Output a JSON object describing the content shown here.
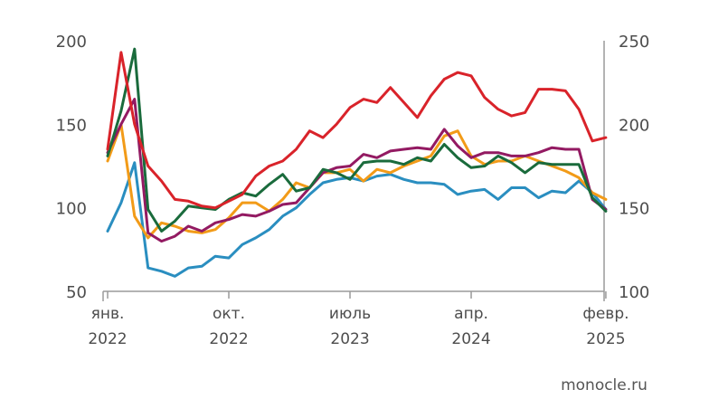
{
  "chart_data": {
    "type": "line",
    "title": "",
    "xlabel": "",
    "ylabel": "",
    "ylim_left": [
      50,
      200
    ],
    "ylim_right": [
      100,
      250
    ],
    "left_ticks": [
      "200",
      "150",
      "100",
      "50"
    ],
    "right_ticks": [
      "250",
      "200",
      "150",
      "100"
    ],
    "x_ticks": [
      {
        "month": "янв.",
        "year": "2022"
      },
      {
        "month": "окт.",
        "year": "2022"
      },
      {
        "month": "июль",
        "year": "2023"
      },
      {
        "month": "апр.",
        "year": "2024"
      },
      {
        "month": "февр.",
        "year": "2025"
      }
    ],
    "grid": false,
    "series": [
      {
        "color": "#d9232a",
        "axis": "left",
        "values": [
          135,
          193,
          150,
          125,
          116,
          105,
          104,
          101,
          100,
          104,
          108,
          119,
          125,
          128,
          135,
          146,
          142,
          150,
          160,
          165,
          163,
          172,
          163,
          154,
          167,
          177,
          181,
          179,
          166,
          159,
          155,
          157,
          171,
          171,
          170,
          159,
          140,
          142
        ]
      },
      {
        "color": "#1a6b3c",
        "axis": "left",
        "values": [
          131,
          158,
          195,
          99,
          86,
          92,
          101,
          100,
          99,
          105,
          109,
          107,
          114,
          120,
          110,
          112,
          123,
          121,
          117,
          127,
          128,
          128,
          126,
          130,
          128,
          138,
          130,
          124,
          125,
          131,
          127,
          121,
          127,
          126,
          126,
          126,
          106,
          98
        ]
      },
      {
        "color": "#931a62",
        "axis": "left",
        "values": [
          133,
          150,
          165,
          85,
          80,
          83,
          89,
          86,
          91,
          93,
          96,
          95,
          98,
          102,
          103,
          112,
          121,
          124,
          125,
          132,
          130,
          134,
          135,
          136,
          135,
          147,
          137,
          130,
          133,
          133,
          131,
          131,
          133,
          136,
          135,
          135,
          105,
          99
        ]
      },
      {
        "color": "#f29b18",
        "axis": "left",
        "values": [
          128,
          150,
          95,
          82,
          91,
          89,
          86,
          85,
          87,
          94,
          103,
          103,
          98,
          105,
          115,
          112,
          121,
          121,
          123,
          116,
          123,
          121,
          125,
          128,
          131,
          143,
          146,
          131,
          126,
          128,
          128,
          131,
          128,
          125,
          122,
          118,
          109,
          105
        ]
      },
      {
        "color": "#2a8ec0",
        "axis": "right",
        "values": [
          136,
          153,
          177,
          114,
          112,
          109,
          114,
          115,
          121,
          120,
          128,
          132,
          137,
          145,
          150,
          158,
          165,
          167,
          168,
          166,
          169,
          170,
          167,
          165,
          165,
          164,
          158,
          160,
          161,
          155,
          162,
          162,
          156,
          160,
          159,
          166,
          159,
          149
        ]
      }
    ]
  },
  "watermark": "monocle.ru"
}
